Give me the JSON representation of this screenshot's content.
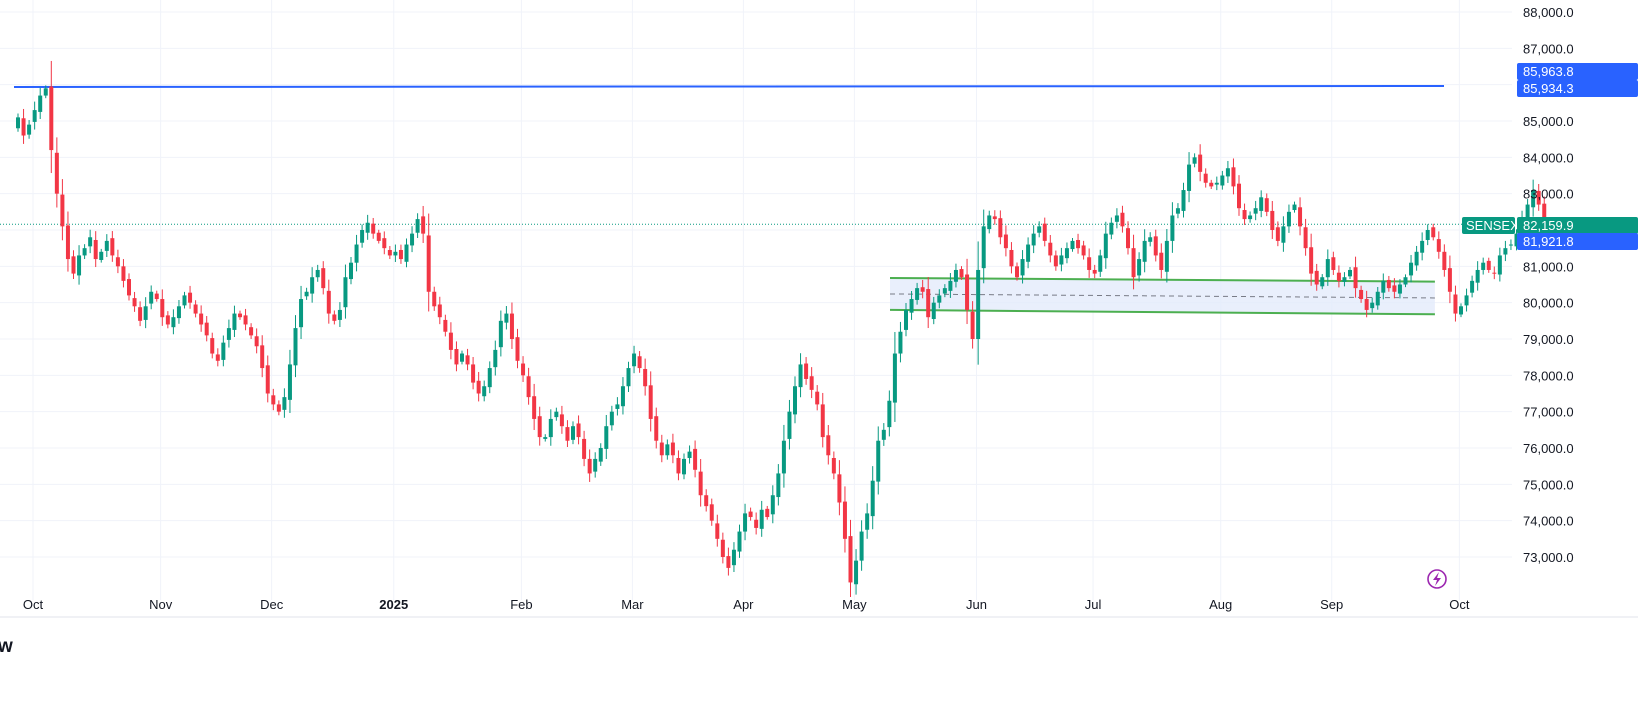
{
  "chart_data": {
    "type": "candlestick",
    "symbol": "SENSEX",
    "current_price_label": "82,159.9",
    "secondary_price_label": "81,921.8",
    "resistance_labels": [
      "85,963.8",
      "85,934.3"
    ],
    "resistance_value": 85963.8,
    "ylim": [
      72200,
      88300
    ],
    "y_ticks": [
      {
        "value": 73000,
        "label": "73,000.0"
      },
      {
        "value": 74000,
        "label": "74,000.0"
      },
      {
        "value": 75000,
        "label": "75,000.0"
      },
      {
        "value": 76000,
        "label": "76,000.0"
      },
      {
        "value": 77000,
        "label": "77,000.0"
      },
      {
        "value": 78000,
        "label": "78,000.0"
      },
      {
        "value": 79000,
        "label": "79,000.0"
      },
      {
        "value": 80000,
        "label": "80,000.0"
      },
      {
        "value": 81000,
        "label": "81,000.0"
      },
      {
        "value": 83000,
        "label": "83,000.0"
      },
      {
        "value": 84000,
        "label": "84,000.0"
      },
      {
        "value": 85000,
        "label": "85,000.0"
      },
      {
        "value": 87000,
        "label": "87,000.0"
      },
      {
        "value": 88000,
        "label": "88,000.0"
      }
    ],
    "x_ticks": [
      {
        "label": "Oct",
        "index": 0
      },
      {
        "label": "Nov",
        "index": 23
      },
      {
        "label": "Dec",
        "index": 43
      },
      {
        "label": "2025",
        "index": 65,
        "bold": true
      },
      {
        "label": "Feb",
        "index": 88
      },
      {
        "label": "Mar",
        "index": 108
      },
      {
        "label": "Apr",
        "index": 128
      },
      {
        "label": "May",
        "index": 148
      },
      {
        "label": "Jun",
        "index": 170
      },
      {
        "label": "Jul",
        "index": 191
      },
      {
        "label": "Aug",
        "index": 214
      },
      {
        "label": "Sep",
        "index": 234
      },
      {
        "label": "Oct",
        "index": 257
      }
    ],
    "channel": {
      "start_index": 160,
      "end_index": 258,
      "upper": 80600,
      "lower": 79800,
      "mid": 80200
    },
    "closes": [
      85100,
      84600,
      84900,
      85300,
      85700,
      85900,
      84200,
      83000,
      82100,
      81200,
      80800,
      81300,
      81500,
      81800,
      81200,
      81400,
      81700,
      81300,
      81000,
      80600,
      80200,
      79900,
      79500,
      79900,
      80300,
      80100,
      79600,
      79400,
      79600,
      79900,
      80200,
      80000,
      79700,
      79400,
      79100,
      78600,
      78400,
      78900,
      79300,
      79700,
      79600,
      79400,
      79100,
      78800,
      78200,
      77500,
      77200,
      77000,
      77400,
      78300,
      79300,
      80100,
      80300,
      80700,
      80900,
      80400,
      79700,
      79500,
      79800,
      80700,
      81100,
      81600,
      82000,
      82200,
      81900,
      81700,
      81500,
      81300,
      81400,
      81200,
      81600,
      81900,
      82300,
      81900,
      80300,
      79900,
      79600,
      79200,
      78700,
      78300,
      78600,
      78300,
      77800,
      77500,
      77700,
      78200,
      78700,
      79500,
      79700,
      79000,
      78400,
      78000,
      77400,
      76800,
      76300,
      76300,
      76800,
      77000,
      76600,
      76200,
      76600,
      76300,
      75700,
      75300,
      75700,
      76000,
      76600,
      77000,
      77200,
      77700,
      78200,
      78600,
      78200,
      77700,
      76800,
      76200,
      75800,
      76100,
      75800,
      75300,
      75700,
      75900,
      75400,
      74700,
      74400,
      74000,
      73500,
      73000,
      72700,
      73200,
      73700,
      74200,
      74100,
      73800,
      74300,
      74100,
      74700,
      75300,
      76200,
      77000,
      77700,
      78300,
      77900,
      77600,
      77200,
      76300,
      75800,
      75300,
      74500,
      73500,
      72300,
      72900,
      73700,
      74200,
      75100,
      76200,
      76500,
      77300,
      78600,
      79200,
      79800,
      80100,
      80400,
      80300,
      79600,
      80000,
      80200,
      80400,
      80600,
      80900,
      80700,
      79800,
      79000,
      80900,
      82100,
      82400,
      82300,
      81800,
      81500,
      81000,
      80700,
      81200,
      81600,
      81900,
      82100,
      81700,
      81300,
      81000,
      81300,
      81500,
      81700,
      81500,
      81300,
      80900,
      80800,
      81300,
      81900,
      82200,
      82400,
      82100,
      81500,
      80700,
      81200,
      81700,
      81800,
      81300,
      80900,
      81700,
      82400,
      82600,
      83100,
      83800,
      84000,
      83600,
      83300,
      83200,
      83300,
      83500,
      83700,
      83200,
      82600,
      82300,
      82400,
      82600,
      82900,
      82500,
      82000,
      81700,
      82100,
      82500,
      82700,
      82100,
      81500,
      80800,
      80500,
      80700,
      81200,
      80900,
      80600,
      80700,
      80900,
      80400,
      80100,
      79800,
      80000,
      80300,
      80600,
      80400,
      80300,
      80500,
      80700,
      81100,
      81400,
      81700,
      82000,
      81800,
      81400,
      80900,
      80300,
      79700,
      79900,
      80200,
      80600,
      80900,
      81100,
      80900,
      80800,
      81300,
      81500,
      81600,
      81900,
      82300,
      82700,
      83100,
      82700,
      82159.9
    ]
  },
  "footer": {
    "logo_text": "w"
  },
  "colors": {
    "up": "#089981",
    "down": "#f23645",
    "resistance": "#2962ff",
    "channel_border": "#4caf50",
    "channel_fill": "#e3ebfb",
    "symbol_tag": "#089981",
    "secondary_tag": "#2962ff",
    "flash_icon": "#9c27b0"
  }
}
